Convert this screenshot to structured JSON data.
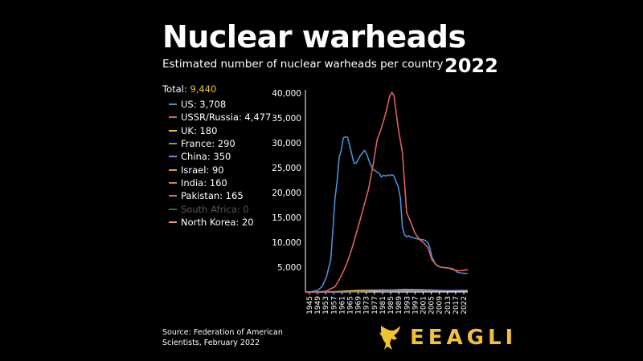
{
  "title": "Nuclear warheads",
  "subtitle": "Estimated number of nuclear warheads per country",
  "year": "2022",
  "total_label": "Total:",
  "total_value": "9,440",
  "source": "Source: Federation of American Scientists, February 2022",
  "brand": "EEAGLI",
  "colors": {
    "accent": "#f2c230",
    "us": "#4a90d9",
    "russia": "#e06060"
  },
  "legend": [
    {
      "label": "US: 3,708",
      "color": "#4a90d9",
      "muted": false
    },
    {
      "label": "USSR/Russia: 4,477",
      "color": "#e06060",
      "muted": false
    },
    {
      "label": "UK: 180",
      "color": "#e8c030",
      "muted": false
    },
    {
      "label": "France: 290",
      "color": "#7aa84a",
      "muted": false
    },
    {
      "label": "China: 350",
      "color": "#9b7ad0",
      "muted": false
    },
    {
      "label": "Israel: 90",
      "color": "#e8964a",
      "muted": false
    },
    {
      "label": "India: 160",
      "color": "#c08860",
      "muted": false
    },
    {
      "label": "Pakistan: 165",
      "color": "#e07070",
      "muted": false
    },
    {
      "label": "South Africa: 0",
      "color": "#3a6a3a",
      "muted": true
    },
    {
      "label": "North Korea: 20",
      "color": "#e8a070",
      "muted": false
    }
  ],
  "chart_data": {
    "type": "line",
    "title": "Nuclear warheads",
    "ylim": [
      0,
      40000
    ],
    "y_ticks": [
      5000,
      10000,
      15000,
      20000,
      25000,
      30000,
      35000,
      40000
    ],
    "y_tick_labels": [
      "5,000",
      "10,000",
      "15,000",
      "20,000",
      "25,000",
      "30,000",
      "35,000",
      "40,000"
    ],
    "x_tick_labels": [
      "1945",
      "1949",
      "1953",
      "1957",
      "1961",
      "1965",
      "1969",
      "1973",
      "1977",
      "1981",
      "1985",
      "1989",
      "1993",
      "1997",
      "2001",
      "2005",
      "2009",
      "2013",
      "2017",
      "2022"
    ],
    "xlim": [
      1945,
      2022
    ],
    "grid": false,
    "legend_position": "left",
    "series": [
      {
        "name": "US",
        "color": "#4a90d9",
        "x": [
          1945,
          1947,
          1949,
          1951,
          1953,
          1955,
          1957,
          1958,
          1959,
          1960,
          1961,
          1962,
          1963,
          1964,
          1965,
          1966,
          1967,
          1968,
          1969,
          1970,
          1971,
          1972,
          1973,
          1974,
          1975,
          1976,
          1977,
          1978,
          1979,
          1980,
          1981,
          1982,
          1983,
          1984,
          1985,
          1986,
          1987,
          1988,
          1989,
          1990,
          1991,
          1992,
          1993,
          1994,
          1995,
          1997,
          1999,
          2001,
          2002,
          2003,
          2004,
          2005,
          2007,
          2009,
          2011,
          2013,
          2015,
          2017,
          2019,
          2022
        ],
        "y": [
          2,
          13,
          170,
          369,
          1169,
          3057,
          6444,
          12298,
          18638,
          22229,
          27100,
          28500,
          31000,
          31200,
          31100,
          29400,
          27700,
          25900,
          25900,
          26600,
          27400,
          27900,
          28500,
          27800,
          26600,
          25500,
          24700,
          24400,
          24100,
          23900,
          23100,
          23500,
          23300,
          23500,
          23400,
          23600,
          23300,
          22200,
          21200,
          19000,
          13000,
          11500,
          11100,
          11300,
          11000,
          10800,
          10600,
          10500,
          10300,
          10000,
          8900,
          7000,
          5400,
          5000,
          4900,
          4800,
          4700,
          4000,
          3800,
          3708
        ]
      },
      {
        "name": "USSR/Russia",
        "color": "#e06060",
        "x": [
          1945,
          1949,
          1951,
          1953,
          1955,
          1957,
          1959,
          1961,
          1963,
          1965,
          1967,
          1969,
          1971,
          1973,
          1975,
          1977,
          1979,
          1981,
          1983,
          1985,
          1986,
          1987,
          1989,
          1991,
          1993,
          1995,
          1997,
          1999,
          2001,
          2003,
          2005,
          2007,
          2009,
          2011,
          2013,
          2015,
          2017,
          2019,
          2022
        ],
        "y": [
          0,
          1,
          25,
          120,
          200,
          650,
          1050,
          2450,
          4150,
          6150,
          8700,
          11600,
          14600,
          17700,
          20800,
          25300,
          30600,
          32900,
          35800,
          39400,
          40150,
          39400,
          33000,
          28000,
          16000,
          14000,
          11800,
          10600,
          9900,
          9000,
          6500,
          5500,
          5000,
          4900,
          4800,
          4500,
          4300,
          4300,
          4477
        ]
      },
      {
        "name": "UK",
        "color": "#e8c030",
        "x": [
          1945,
          1953,
          1960,
          1970,
          1980,
          1990,
          2000,
          2010,
          2022
        ],
        "y": [
          0,
          20,
          100,
          300,
          400,
          400,
          280,
          225,
          180
        ]
      },
      {
        "name": "France",
        "color": "#7aa84a",
        "x": [
          1945,
          1964,
          1970,
          1980,
          1992,
          2000,
          2010,
          2022
        ],
        "y": [
          0,
          4,
          80,
          250,
          540,
          470,
          300,
          290
        ]
      },
      {
        "name": "China",
        "color": "#9b7ad0",
        "x": [
          1945,
          1964,
          1970,
          1980,
          1990,
          2000,
          2010,
          2022
        ],
        "y": [
          0,
          1,
          75,
          280,
          230,
          230,
          260,
          350
        ]
      }
    ]
  }
}
